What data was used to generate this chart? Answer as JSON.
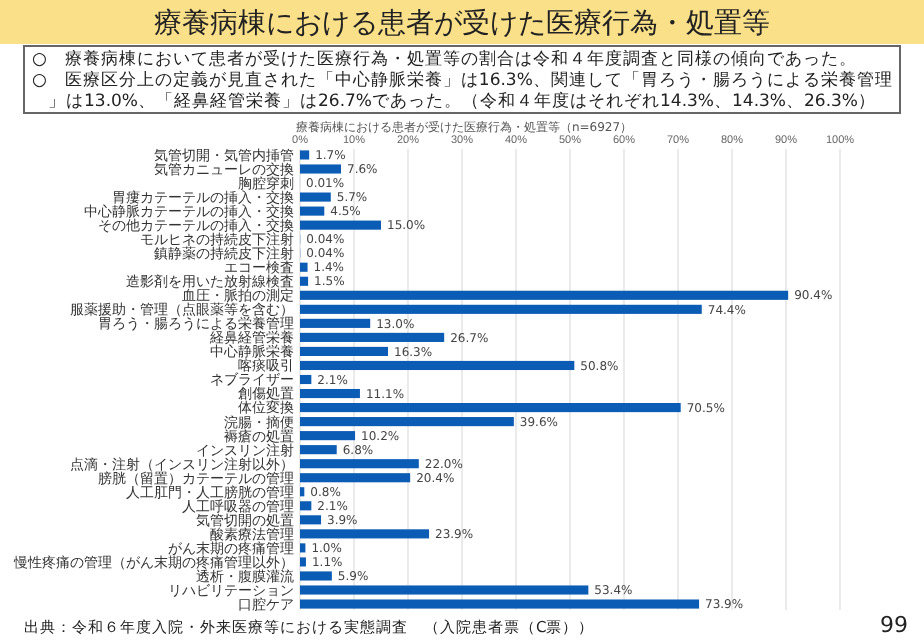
{
  "chart_data": {
    "type": "bar",
    "orientation": "horizontal",
    "title": "療養病棟における患者が受けた医療行為・処置等",
    "subtitle": "療養病棟における患者が受けた医療行為・処置等（n=6927）",
    "annotations": [
      "○　療養病棟において患者が受けた医療行為・処置等の割合は令和４年度調査と同様の傾向であった。",
      "○　医療区分上の定義が見直された「中心静脈栄養」は16.3%、関連して「胃ろう・腸ろうによる栄養管理」は13.0%、「経鼻経管栄養」は26.7%であった。（令和４年度はそれぞれ14.3%、14.3%、26.3%）",
      "出典：令和６年度入院・外来医療等における実態調査　（入院患者票（C票））",
      "99"
    ],
    "categories": [
      "気管切開・気管内挿管",
      "気管カニューレの交換",
      "胸腔穿刺",
      "胃瘻カテーテルの挿入・交換",
      "中心静脈カテーテルの挿入・交換",
      "その他カテーテルの挿入・交換",
      "モルヒネの持続皮下注射",
      "鎮静薬の持続皮下注射",
      "エコー検査",
      "造影剤を用いた放射線検査",
      "血圧・脈拍の測定",
      "服薬援助・管理（点眼薬等を含む）",
      "胃ろう・腸ろうによる栄養管理",
      "経鼻経管栄養",
      "中心静脈栄養",
      "喀痰吸引",
      "ネブライザー",
      "創傷処置",
      "体位変換",
      "浣腸・摘便",
      "褥瘡の処置",
      "インスリン注射",
      "点滴・注射（インスリン注射以外）",
      "膀胱（留置）カテーテルの管理",
      "人工肛門・人工膀胱の管理",
      "人工呼吸器の管理",
      "気管切開の処置",
      "酸素療法管理",
      "がん末期の疼痛管理",
      "慢性疼痛の管理（がん末期の疼痛管理以外）",
      "透析・腹膜灌流",
      "リハビリテーション",
      "口腔ケア"
    ],
    "values": [
      1.7,
      7.6,
      0.01,
      5.7,
      4.5,
      15.0,
      0.04,
      0.04,
      1.4,
      1.5,
      90.4,
      74.4,
      13.0,
      26.7,
      16.3,
      50.8,
      2.1,
      11.1,
      70.5,
      39.6,
      10.2,
      6.8,
      22.0,
      20.4,
      0.8,
      2.1,
      3.9,
      23.9,
      1.0,
      1.1,
      5.9,
      53.4,
      73.9
    ],
    "value_labels": [
      "1.7%",
      "7.6%",
      "0.01%",
      "5.7%",
      "4.5%",
      "15.0%",
      "0.04%",
      "0.04%",
      "1.4%",
      "1.5%",
      "90.4%",
      "74.4%",
      "13.0%",
      "26.7%",
      "16.3%",
      "50.8%",
      "2.1%",
      "11.1%",
      "70.5%",
      "39.6%",
      "10.2%",
      "6.8%",
      "22.0%",
      "20.4%",
      "0.8%",
      "2.1%",
      "3.9%",
      "23.9%",
      "1.0%",
      "1.1%",
      "5.9%",
      "53.4%",
      "73.9%"
    ],
    "color": "#0b5cb5",
    "xlim": [
      0,
      100
    ],
    "xticks": [
      {
        "value": 0,
        "label": "0%"
      },
      {
        "value": 10,
        "label": "10%"
      },
      {
        "value": 20,
        "label": "20%"
      },
      {
        "value": 30,
        "label": "30%"
      },
      {
        "value": 40,
        "label": "40%"
      },
      {
        "value": 50,
        "label": "50%"
      },
      {
        "value": 60,
        "label": "60%"
      },
      {
        "value": 70,
        "label": "70%"
      },
      {
        "value": 80,
        "label": "80%"
      },
      {
        "value": 90,
        "label": "90%"
      },
      {
        "value": 100,
        "label": "100%"
      }
    ],
    "grid": "x"
  }
}
